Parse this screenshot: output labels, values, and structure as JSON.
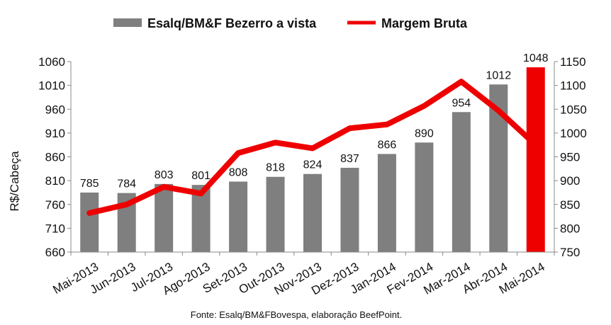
{
  "chart_data": {
    "type": "bar",
    "categories": [
      "Mai-2013",
      "Jun-2013",
      "Jul-2013",
      "Ago-2013",
      "Set-2013",
      "Out-2013",
      "Nov-2013",
      "Dez-2013",
      "Jan-2014",
      "Fev-2014",
      "Mar-2014",
      "Abr-2014",
      "Mai-2014"
    ],
    "series": [
      {
        "name": "Esalq/BM&F Bezerro a vista",
        "type": "bar",
        "axis": "left",
        "color": "#7f7f7f",
        "highlight_color": "#ee0000",
        "highlight_index": 12,
        "values": [
          785,
          784,
          803,
          801,
          808,
          818,
          824,
          837,
          866,
          890,
          954,
          1012,
          1048
        ],
        "labels": [
          "785",
          "784",
          "803",
          "801",
          "808",
          "818",
          "824",
          "837",
          "866",
          "890",
          "954",
          "1012",
          "1048"
        ]
      },
      {
        "name": "Margem Bruta",
        "type": "line",
        "axis": "right",
        "color": "#ee0000",
        "values": [
          832,
          850,
          887,
          873,
          958,
          980,
          968,
          1010,
          1018,
          1057,
          1108,
          1047,
          975
        ]
      }
    ],
    "ylabel": "R$/Cabeça",
    "ylim_left": [
      660,
      1060
    ],
    "yticks_left": [
      660,
      710,
      760,
      810,
      860,
      910,
      960,
      1010,
      1060
    ],
    "ytick_labels_left": [
      "660",
      "710",
      "760",
      "810",
      "860",
      "910",
      "960",
      "1010",
      "1060"
    ],
    "ylim_right": [
      750,
      1150
    ],
    "yticks_right": [
      750,
      800,
      850,
      900,
      950,
      1000,
      1050,
      1100,
      1150
    ],
    "ytick_labels_right": [
      "750",
      "800",
      "850",
      "900",
      "950",
      "1000",
      "1050",
      "1100",
      "1150"
    ],
    "legend_position": "top-center",
    "grid": false,
    "source": "Fonte: Esalq/BM&FBovespa, elaboração BeefPoint."
  }
}
